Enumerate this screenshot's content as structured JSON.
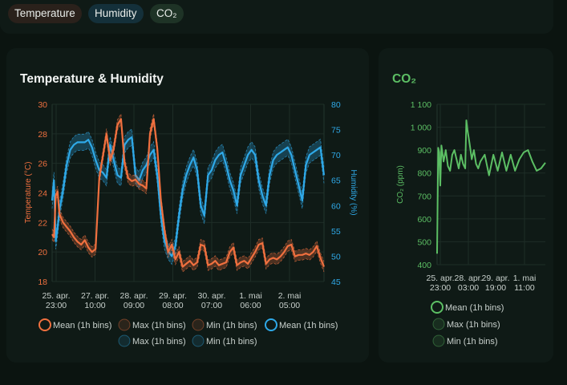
{
  "tabs": [
    {
      "label": "Temperature",
      "color": "#2a211b"
    },
    {
      "label": "Humidity",
      "color": "#14303a"
    },
    {
      "label": "CO₂",
      "color": "#1e3326"
    }
  ],
  "temp_card": {
    "title": "Temperature & Humidity"
  },
  "co2_card": {
    "title": "CO₂"
  },
  "chart_data": [
    {
      "type": "line",
      "title": "Temperature & Humidity",
      "x_tick_labels": [
        [
          "25. apr.",
          "23:00"
        ],
        [
          "27. apr.",
          "10:00"
        ],
        [
          "28. apr.",
          "09:00"
        ],
        [
          "29. apr.",
          "08:00"
        ],
        [
          "30. apr.",
          "07:00"
        ],
        [
          "1. mai",
          "06:00"
        ],
        [
          "2. mai",
          "05:00"
        ]
      ],
      "y_left": {
        "label": "Temperature (°C)",
        "ticks": [
          18,
          20,
          22,
          24,
          26,
          28,
          30
        ],
        "range": [
          18,
          30
        ],
        "color": "#f0703f"
      },
      "y_right": {
        "label": "Humidity (%)",
        "ticks": [
          45,
          50,
          55,
          60,
          65,
          70,
          75,
          80
        ],
        "range": [
          45,
          80
        ],
        "color": "#2fa9e8"
      },
      "grid": true,
      "legend_position": "bottom",
      "legend": [
        {
          "label": "Mean (1h bins)",
          "color": "#f0703f"
        },
        {
          "label": "Max (1h bins)",
          "color": "#f0703f"
        },
        {
          "label": "Min (1h bins)",
          "color": "#f0703f"
        },
        {
          "label": "Mean (1h bins)",
          "color": "#2fa9e8"
        },
        {
          "label": "Max (1h bins)",
          "color": "#2fa9e8"
        },
        {
          "label": "Min (1h bins)",
          "color": "#2fa9e8"
        }
      ],
      "x_range": [
        0,
        150
      ],
      "series": [
        {
          "axis": "left",
          "color": "#f0703f",
          "band": 0.35,
          "x": [
            0,
            1,
            2,
            3,
            4,
            5,
            6,
            8,
            10,
            12,
            14,
            16,
            18,
            20,
            22,
            24,
            26,
            28,
            30,
            32,
            34,
            36,
            38,
            40,
            42,
            44,
            46,
            48,
            50,
            52,
            54,
            56,
            58,
            60,
            62,
            64,
            66,
            68,
            70,
            72,
            74,
            76,
            78,
            80,
            82,
            84,
            86,
            88,
            90,
            92,
            94,
            96,
            98,
            100,
            102,
            104,
            106,
            108,
            110,
            112,
            114,
            116,
            118,
            120,
            122,
            124,
            126,
            128,
            130,
            132,
            134,
            136,
            138,
            140,
            142,
            144,
            146,
            148,
            150
          ],
          "y": [
            21.2,
            21,
            23.8,
            24.1,
            22.6,
            22.3,
            22,
            21.7,
            21.4,
            21,
            20.7,
            20.5,
            20.8,
            20.3,
            20,
            20.2,
            25,
            26.5,
            28,
            26.2,
            27,
            28.6,
            29,
            26,
            25,
            24.8,
            24.9,
            24.6,
            24.5,
            24.3,
            28,
            29,
            27,
            23.5,
            21.5,
            20,
            20.5,
            19.5,
            20,
            19,
            19.2,
            19.4,
            19.1,
            19.3,
            20.5,
            20.4,
            19.1,
            19.2,
            19.4,
            19.1,
            19.2,
            19.3,
            20,
            20.3,
            19.1,
            19.3,
            19.4,
            19.2,
            19.6,
            20,
            20.5,
            20.6,
            19.2,
            19.5,
            19.6,
            19.5,
            19.7,
            20,
            20.4,
            20.5,
            19.7,
            19.8,
            19.8,
            19.9,
            19.8,
            20,
            20.4,
            19.6,
            19
          ]
        },
        {
          "axis": "right",
          "color": "#2fa9e8",
          "band": 1.6,
          "x": [
            0,
            1,
            2,
            3,
            4,
            5,
            6,
            8,
            10,
            12,
            14,
            16,
            18,
            20,
            22,
            24,
            26,
            28,
            30,
            32,
            34,
            36,
            38,
            40,
            42,
            44,
            46,
            48,
            50,
            52,
            54,
            56,
            58,
            60,
            62,
            64,
            66,
            68,
            70,
            72,
            74,
            76,
            78,
            80,
            82,
            84,
            86,
            88,
            90,
            92,
            94,
            96,
            98,
            100,
            102,
            104,
            106,
            108,
            110,
            112,
            114,
            116,
            118,
            120,
            122,
            124,
            126,
            128,
            130,
            132,
            134,
            136,
            138,
            140,
            142,
            144,
            146,
            148,
            150
          ],
          "y": [
            61,
            65,
            53,
            55.5,
            59,
            61,
            63,
            68,
            71,
            72,
            72.5,
            72.5,
            72.5,
            73,
            71.5,
            69,
            67,
            66.5,
            65.5,
            72,
            69,
            66,
            65.5,
            72,
            73,
            73.5,
            66,
            65,
            67,
            68,
            70,
            71,
            66,
            58,
            53,
            51,
            50,
            52,
            58,
            63,
            66,
            68,
            69.5,
            67,
            60,
            58,
            66,
            67,
            69,
            70,
            70.5,
            68,
            65,
            63,
            60,
            66,
            68,
            70,
            71,
            70,
            65,
            62,
            60,
            66,
            69,
            70,
            70.5,
            71,
            71.5,
            70,
            67,
            64,
            61,
            68,
            70,
            70.5,
            71,
            71.5,
            66
          ]
        }
      ]
    },
    {
      "type": "line",
      "title": "CO₂",
      "x_tick_labels": [
        [
          "25. apr.",
          "23:00"
        ],
        [
          "28. apr.",
          "03:00"
        ],
        [
          "29. apr.",
          "19:00"
        ],
        [
          "1. mai",
          "11:00"
        ]
      ],
      "y": {
        "label": "CO₂ (ppm)",
        "ticks": [
          "400",
          "500",
          "600",
          "700",
          "800",
          "900",
          "1 000",
          "1 100"
        ],
        "range": [
          400,
          1100
        ],
        "color": "#5cbf64"
      },
      "grid": true,
      "legend_position": "bottom",
      "legend": [
        {
          "label": "Mean (1h bins)",
          "color": "#5cbf64"
        },
        {
          "label": "Max (1h bins)",
          "color": "#5cbf64"
        },
        {
          "label": "Min (1h bins)",
          "color": "#5cbf64"
        }
      ],
      "x_range": [
        0,
        100
      ],
      "series": [
        {
          "color": "#5cbf64",
          "x": [
            0,
            1,
            2,
            3,
            4,
            6,
            8,
            10,
            12,
            14,
            16,
            18,
            20,
            22,
            24,
            26,
            27,
            28,
            30,
            32,
            34,
            36,
            38,
            40,
            44,
            48,
            52,
            56,
            60,
            64,
            68,
            72,
            76,
            80,
            84,
            88,
            92,
            96,
            100
          ],
          "y": [
            448,
            910,
            890,
            745,
            920,
            850,
            900,
            830,
            810,
            880,
            900,
            860,
            820,
            880,
            840,
            820,
            1030,
            990,
            930,
            860,
            900,
            840,
            820,
            850,
            880,
            790,
            880,
            810,
            890,
            810,
            880,
            810,
            860,
            890,
            900,
            850,
            810,
            820,
            845
          ]
        }
      ]
    }
  ]
}
